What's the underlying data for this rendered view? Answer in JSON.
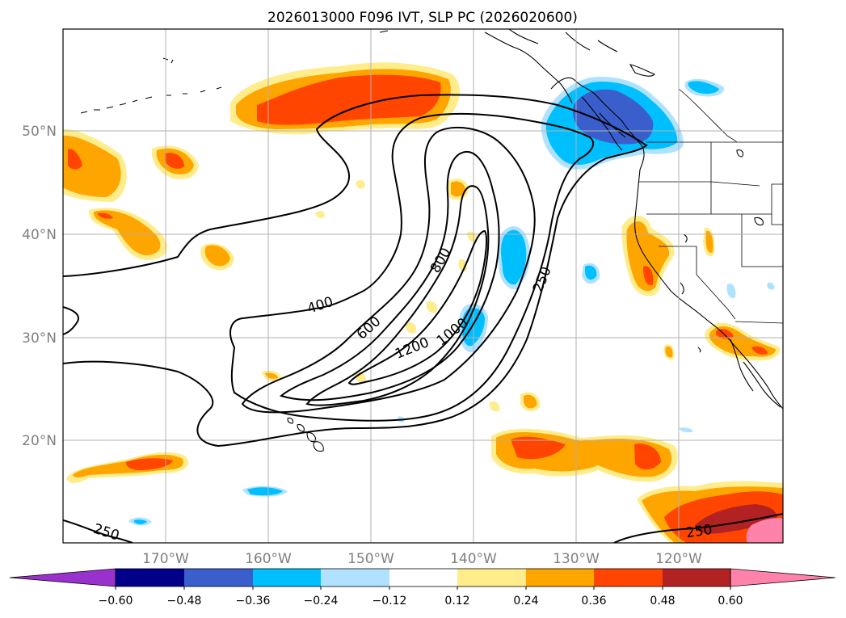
{
  "title": "2026013000 F096 IVT, SLP PC (2026020600)",
  "map": {
    "lon_labels": [
      "170°W",
      "160°W",
      "150°W",
      "140°W",
      "130°W",
      "120°W"
    ],
    "lat_labels": [
      "50°N",
      "40°N",
      "30°N",
      "20°N"
    ],
    "ivt_contour_labels": [
      "250",
      "400",
      "600",
      "800",
      "1000",
      "1200",
      "250",
      "250"
    ]
  },
  "colorbar": {
    "ticks": [
      "−0.60",
      "−0.48",
      "−0.36",
      "−0.24",
      "−0.12",
      "0.12",
      "0.24",
      "0.36",
      "0.48",
      "0.60"
    ],
    "colors": [
      "#9932cc",
      "#00008b",
      "#3a5fcd",
      "#00bfff",
      "#b0e2ff",
      "#ffffff",
      "#ffec8b",
      "#ffa500",
      "#ff4500",
      "#b22222",
      "#ff82ab"
    ]
  },
  "colors": {
    "land_line": "#000000",
    "grid": "#b0b0b0",
    "contour": "#000000"
  }
}
